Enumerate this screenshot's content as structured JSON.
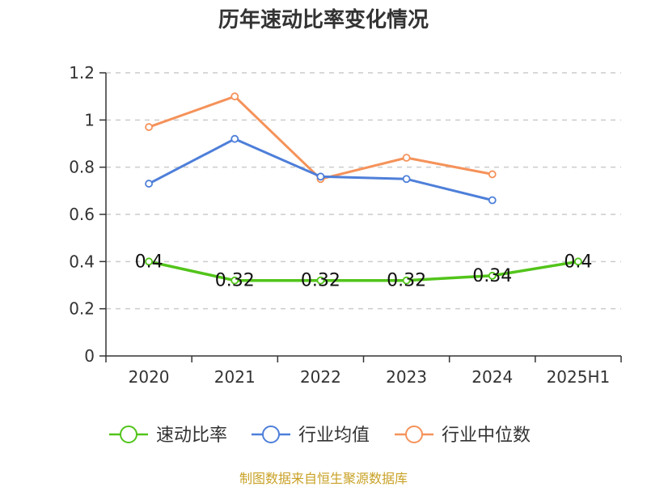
{
  "chart_data": {
    "type": "line",
    "title": "历年速动比率变化情况",
    "categories": [
      "2020",
      "2021",
      "2022",
      "2023",
      "2024",
      "2025H1"
    ],
    "series": [
      {
        "name": "速动比率",
        "color": "#52c41a",
        "values": [
          0.4,
          0.32,
          0.32,
          0.32,
          0.34,
          0.4
        ],
        "labels": [
          "0.4",
          "0.32",
          "0.32",
          "0.32",
          "0.34",
          "0.4"
        ]
      },
      {
        "name": "行业均值",
        "color": "#4e7fd9",
        "values": [
          0.73,
          0.92,
          0.76,
          0.75,
          0.66,
          null
        ]
      },
      {
        "name": "行业中位数",
        "color": "#f5925a",
        "values": [
          0.97,
          1.1,
          0.75,
          0.84,
          0.77,
          null
        ]
      }
    ],
    "ylim": [
      0,
      1.2
    ],
    "yticks": [
      "0",
      "0.2",
      "0.4",
      "0.6",
      "0.8",
      "1",
      "1.2"
    ],
    "grid": true,
    "legend_position": "bottom"
  },
  "source_note": "制图数据来自恒生聚源数据库"
}
